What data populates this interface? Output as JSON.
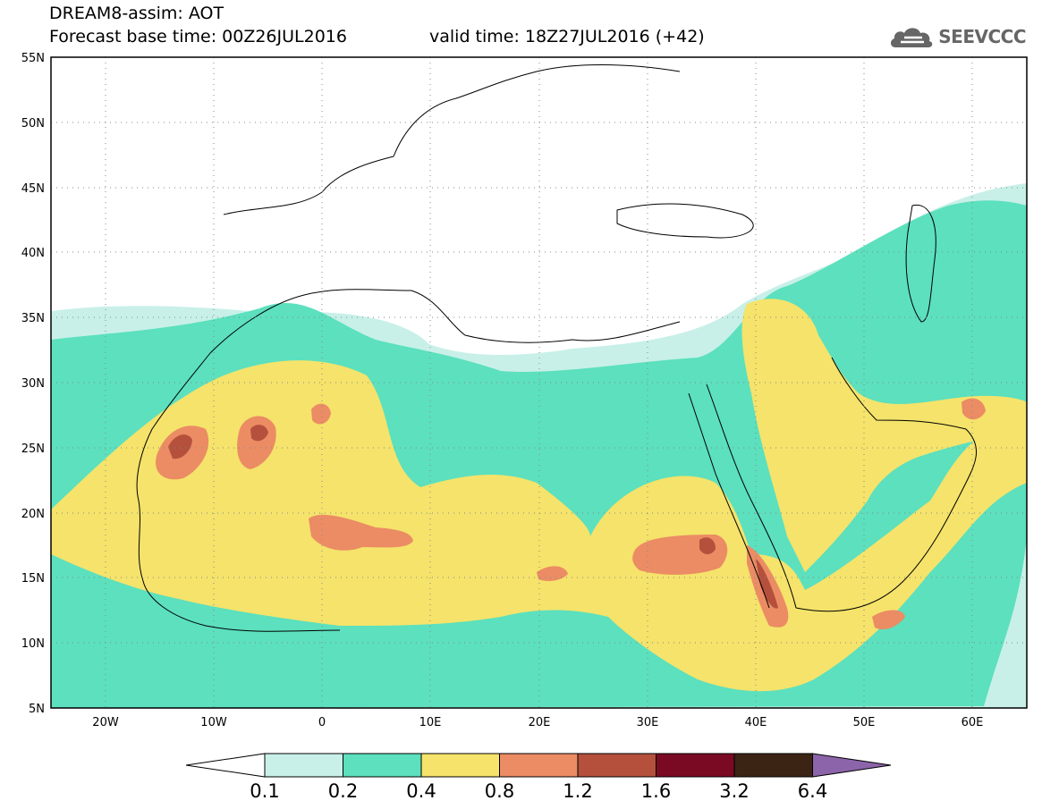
{
  "header": {
    "line1": "DREAM8-assim: AOT",
    "line2": "Forecast base time: 00Z26JUL2016",
    "line3": "valid time: 18Z27JUL2016 (+42)"
  },
  "logo": {
    "text": "SEEVCCC",
    "icon": "cloud-icon"
  },
  "map": {
    "lat_labels": [
      "55N",
      "50N",
      "45N",
      "40N",
      "35N",
      "30N",
      "25N",
      "20N",
      "15N",
      "10N",
      "5N"
    ],
    "lon_labels": [
      "20W",
      "10W",
      "0",
      "10E",
      "20E",
      "30E",
      "40E",
      "50E",
      "60E"
    ],
    "lat_range": [
      5,
      55
    ],
    "lon_range": [
      -25,
      65
    ],
    "grid": "dotted"
  },
  "colorbar": {
    "labels": [
      "0.1",
      "0.2",
      "0.4",
      "0.8",
      "1.2",
      "1.6",
      "3.2",
      "6.4"
    ],
    "colors": [
      "#c8f0e8",
      "#5ce0be",
      "#f5e36b",
      "#eb8c64",
      "#b4503c",
      "#7a0a24",
      "#3c2414",
      "#8c64aa"
    ]
  }
}
